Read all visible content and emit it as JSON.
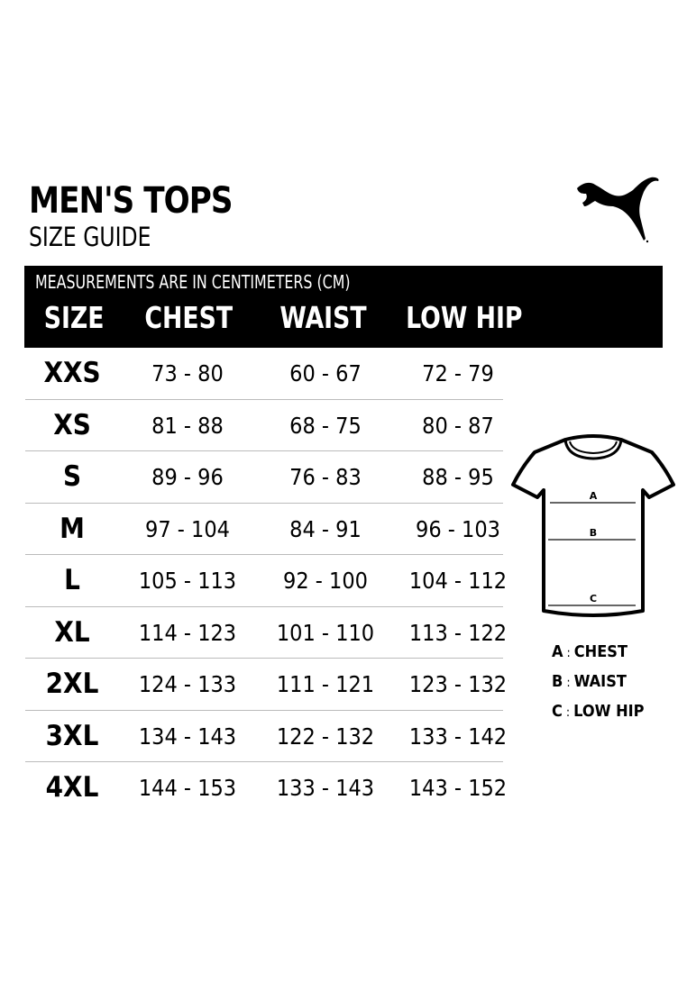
{
  "header": {
    "title": "MEN'S TOPS",
    "subtitle": "SIZE GUIDE",
    "brand": "PUMA"
  },
  "table": {
    "note": "MEASUREMENTS ARE IN CENTIMETERS (CM)",
    "columns": [
      "SIZE",
      "CHEST",
      "WAIST",
      "LOW HIP"
    ],
    "rows": [
      [
        "XXS",
        "73 - 80",
        "60 - 67",
        "72 - 79"
      ],
      [
        "XS",
        "81 - 88",
        "68 - 75",
        "80 - 87"
      ],
      [
        "S",
        "89 - 96",
        "76 - 83",
        "88 - 95"
      ],
      [
        "M",
        "97 - 104",
        "84 - 91",
        "96 - 103"
      ],
      [
        "L",
        "105 - 113",
        "92 - 100",
        "104 - 112"
      ],
      [
        "XL",
        "114 - 123",
        "101 - 110",
        "113 - 122"
      ],
      [
        "2XL",
        "124 - 133",
        "111 - 121",
        "123 - 132"
      ],
      [
        "3XL",
        "134 - 143",
        "122 - 132",
        "133 - 142"
      ],
      [
        "4XL",
        "144 - 153",
        "133 - 143",
        "143 - 152"
      ]
    ]
  },
  "diagram": {
    "markers": [
      "A",
      "B",
      "C"
    ],
    "legend": [
      {
        "key": "A",
        "sep": ":",
        "label": "CHEST"
      },
      {
        "key": "B",
        "sep": ":",
        "label": "WAIST"
      },
      {
        "key": "C",
        "sep": ":",
        "label": "LOW HIP"
      }
    ]
  }
}
